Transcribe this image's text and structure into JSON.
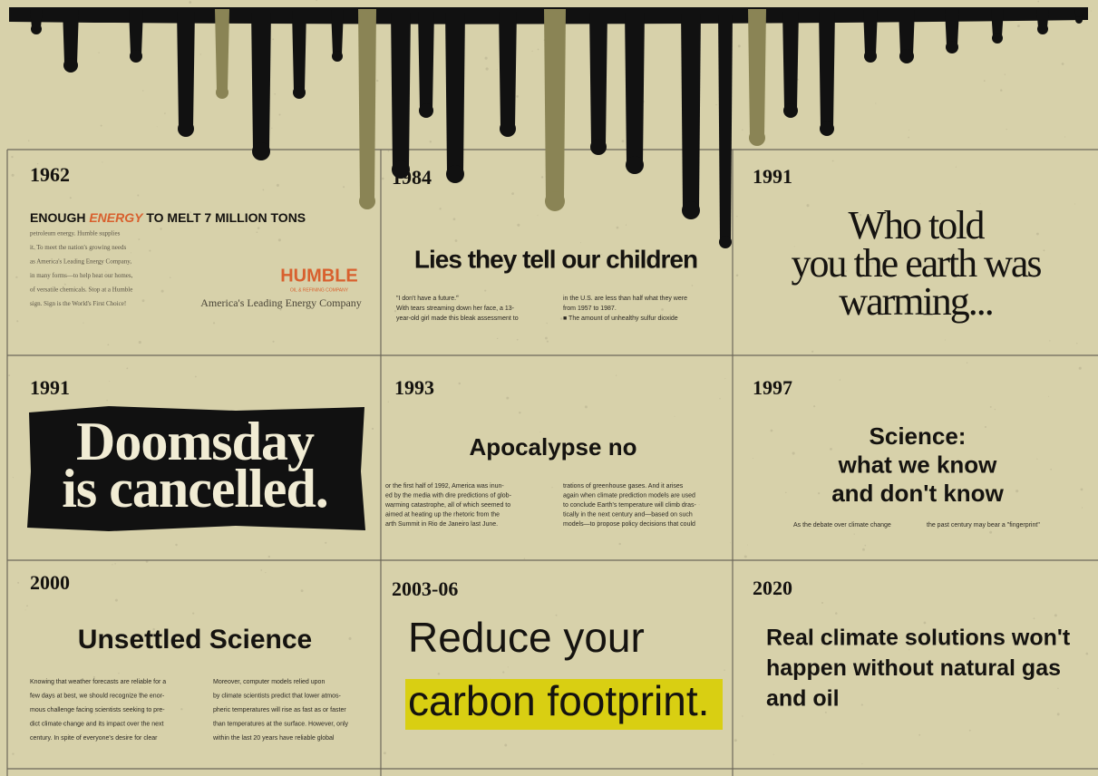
{
  "panels": [
    {
      "year": "1962",
      "headline": [
        "ENOUGH ",
        "ENERGY",
        " TO MELT 7 MILLION TONS"
      ],
      "body": [
        "petroleum energy. Humble supplies",
        "it. To meet the nation's growing needs",
        "as America's Leading Energy Company,",
        "in many forms—to help heat our homes,",
        "of versatile chemicals. Stop at a Humble",
        "sign. Sign is the World's First Choice!"
      ],
      "brand": "HUMBLE",
      "brand_sub": "OIL & REFINING COMPANY",
      "tagline": "America's Leading Energy Company"
    },
    {
      "year": "1984",
      "headline": [
        "Lies they tell our children"
      ],
      "columns": [
        [
          "\"I don't have a future.\"",
          "With tears streaming down her face, a 13-",
          "year-old girl made this bleak assessment to"
        ],
        [
          "in the U.S. are less than half what they were",
          "from 1957 to 1987.",
          "■ The amount of unhealthy sulfur dioxide"
        ]
      ]
    },
    {
      "year": "1991",
      "headline": [
        "Who told",
        "you the earth was",
        "warming..."
      ]
    },
    {
      "year": "1991",
      "headline": [
        "Doomsday",
        "is cancelled."
      ]
    },
    {
      "year": "1993",
      "headline": [
        "Apocalypse no"
      ],
      "columns": [
        [
          "or the first half of 1992, America was inun-",
          "ed by the media with dire predictions of glob-",
          "warming catastrophe, all of which seemed to",
          "aimed at heating up the rhetoric from the",
          "arth Summit in Rio de Janeiro last June."
        ],
        [
          "trations of greenhouse gases. And it arises",
          "again when climate prediction models are used",
          "to conclude Earth's temperature will climb dras-",
          "tically in the next century and—based on such",
          "models—to propose policy decisions that could"
        ]
      ]
    },
    {
      "year": "1997",
      "headline": [
        "Science:",
        "what we know",
        "and don't know"
      ],
      "caption": [
        "As the debate over climate change",
        "the past century may bear a \"fingerprint\""
      ]
    },
    {
      "year": "2000",
      "headline": [
        "Unsettled Science"
      ],
      "columns": [
        [
          "Knowing that weather forecasts are reliable for a",
          "few days at best, we should recognize the enor-",
          "mous challenge facing scientists seeking to pre-",
          "dict climate change and its impact over the next",
          "century. In spite of everyone's desire for clear"
        ],
        [
          "Moreover, computer models relied upon",
          "by climate scientists predict that lower atmos-",
          "pheric temperatures will rise as fast as or faster",
          "than temperatures at the surface. However, only",
          "within the last 20 years have reliable global"
        ]
      ]
    },
    {
      "year": "2003-06",
      "headline": [
        "Reduce your",
        "carbon footprint."
      ]
    },
    {
      "year": "2020",
      "headline": [
        "Real climate solutions won't",
        "happen without natural gas",
        "and oil"
      ]
    }
  ]
}
